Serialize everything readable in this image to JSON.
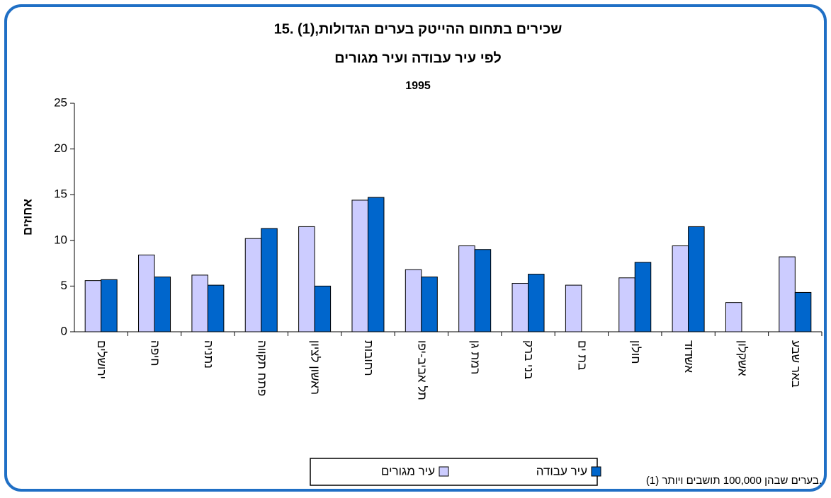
{
  "chart_data": {
    "type": "bar",
    "title": "15. שכירים בתחום ההייטק בערים הגדולות,(1)",
    "subtitle": "לפי עיר עבודה ועיר מגורים",
    "year": "1995",
    "y_label": "אחוזים",
    "footnote": "(1) בערים שבהן 100,000 תושבים ויותר.",
    "categories": [
      "ירושלים",
      "חיפה",
      "נתניה",
      "פתח תקווה",
      "ראשון לציון",
      "רחובות",
      "תל אביב-יפו",
      "רמת גן",
      "בני ברק",
      "בת ים",
      "חולון",
      "אשדוד",
      "אשקלון",
      "באר שבע"
    ],
    "series": [
      {
        "name": "עיר מגורים",
        "color": "#ccccff",
        "values": [
          5.6,
          8.4,
          6.2,
          10.2,
          11.5,
          14.4,
          6.8,
          9.4,
          5.3,
          5.1,
          5.9,
          9.4,
          3.2,
          8.2
        ]
      },
      {
        "name": "עיר עבודה",
        "color": "#0066cc",
        "values": [
          5.7,
          6.0,
          5.1,
          11.3,
          5.0,
          14.7,
          6.0,
          9.0,
          6.3,
          null,
          7.6,
          11.5,
          null,
          4.3
        ]
      }
    ],
    "ylim": [
      0,
      25
    ],
    "yticks": [
      0,
      5,
      10,
      15,
      20,
      25
    ],
    "grid": false
  }
}
